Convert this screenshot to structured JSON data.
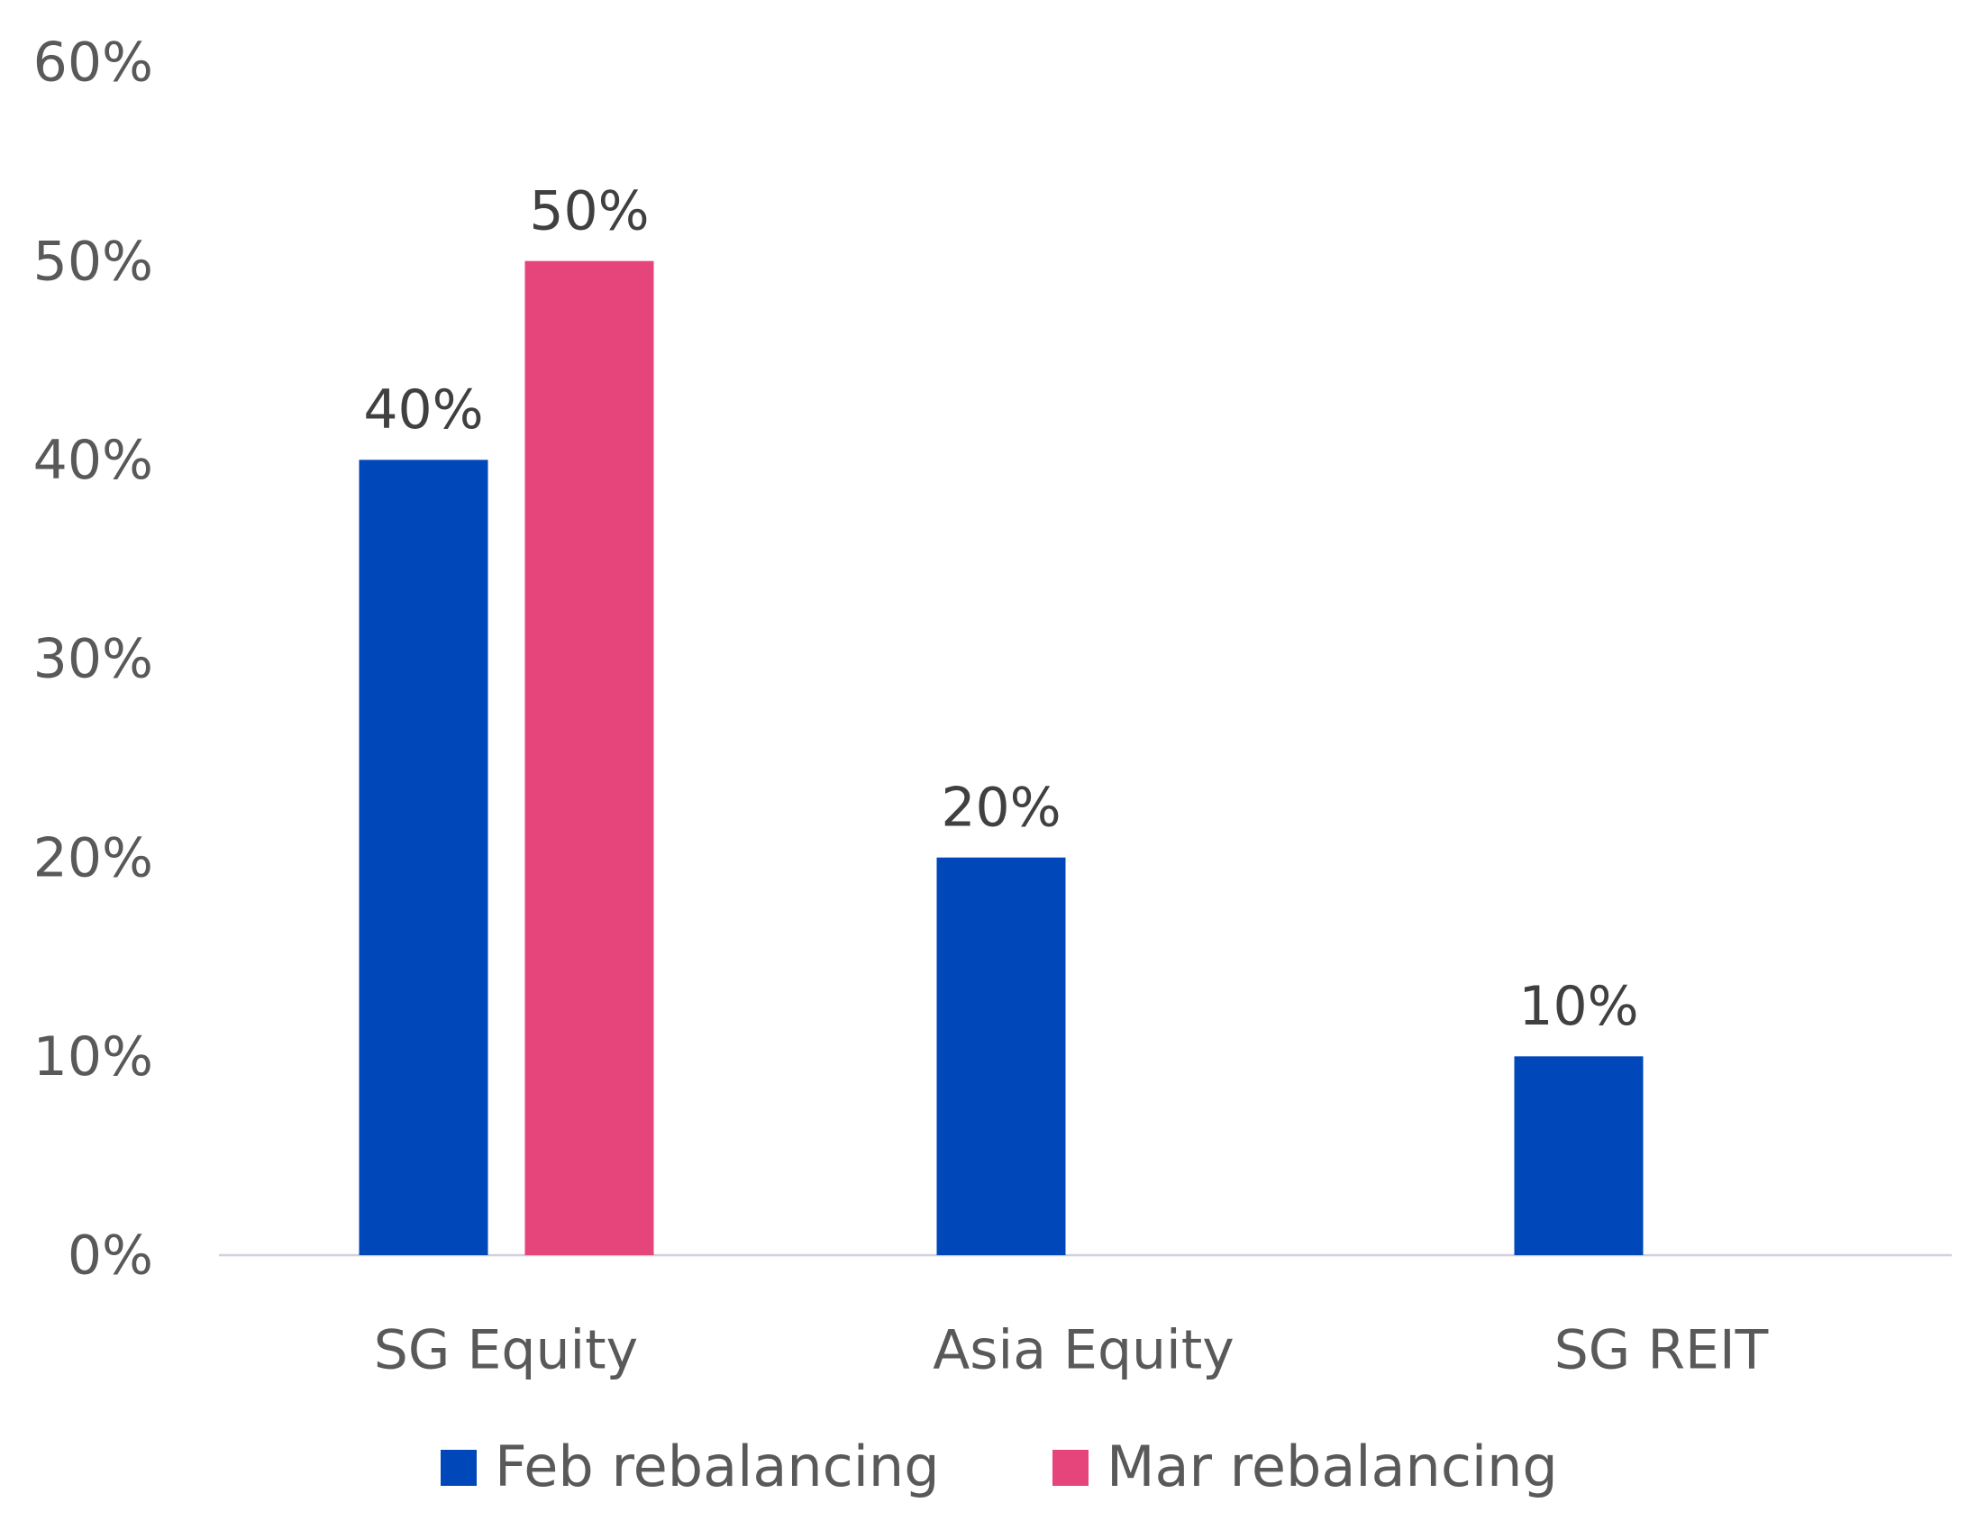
{
  "chart_data": {
    "type": "bar",
    "categories": [
      "SG Equity",
      "Asia Equity",
      "SG REIT"
    ],
    "series": [
      {
        "name": "Feb rebalancing",
        "color": "#0047ba",
        "values": [
          40,
          20,
          10
        ],
        "value_labels": [
          "40%",
          "20%",
          "10%"
        ]
      },
      {
        "name": "Mar rebalancing",
        "color": "#e5457a",
        "values": [
          50,
          null,
          null
        ],
        "value_labels": [
          "50%",
          null,
          null
        ]
      }
    ],
    "ylim": [
      0,
      60
    ],
    "yticks": [
      {
        "value": 0,
        "label": "0%"
      },
      {
        "value": 10,
        "label": "10%"
      },
      {
        "value": 20,
        "label": "20%"
      },
      {
        "value": 30,
        "label": "30%"
      },
      {
        "value": 40,
        "label": "40%"
      },
      {
        "value": 50,
        "label": "50%"
      },
      {
        "value": 60,
        "label": "60%"
      }
    ],
    "grid": false,
    "legend": "bottom"
  }
}
